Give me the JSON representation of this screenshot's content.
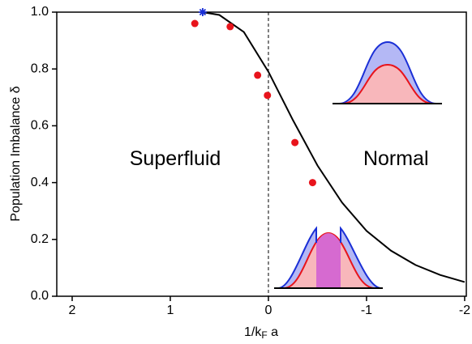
{
  "chart_data": {
    "type": "scatter",
    "xlabel": {
      "main": "1/k",
      "sub": "F",
      "rest": " a"
    },
    "ylabel": "Population Imbalance δ",
    "xlim": [
      2.157,
      -2.017
    ],
    "ylim": [
      0,
      1
    ],
    "xticks": [
      2,
      1,
      0,
      -1,
      -2
    ],
    "yticks": [
      {
        "value": 0,
        "label": "0.0"
      },
      0.2,
      0.4,
      0.6,
      0.8,
      {
        "value": 1,
        "label": "1.0"
      }
    ],
    "points": {
      "color": "#e8141c",
      "x": [
        0.75,
        0.39,
        0.11,
        0.01,
        -0.27,
        -0.45
      ],
      "y": [
        0.96,
        0.949,
        0.778,
        0.707,
        0.541,
        0.4
      ]
    },
    "star": {
      "color": "#1a2fd6",
      "x": [
        0.67
      ],
      "y": [
        1.0
      ]
    },
    "curve": {
      "color": "#000000",
      "x": [
        0.67,
        0.5,
        0.25,
        0,
        -0.25,
        -0.5,
        -0.75,
        -1,
        -1.25,
        -1.5,
        -1.75,
        -2.0
      ],
      "y": [
        1.0,
        0.99,
        0.93,
        0.79,
        0.62,
        0.46,
        0.33,
        0.23,
        0.16,
        0.11,
        0.075,
        0.05
      ]
    },
    "divider_x": 0,
    "annotations": [
      {
        "text": "Superfluid",
        "x": 0.95,
        "y": 0.48
      },
      {
        "text": "Normal",
        "x": -1.3,
        "y": 0.48
      }
    ]
  }
}
